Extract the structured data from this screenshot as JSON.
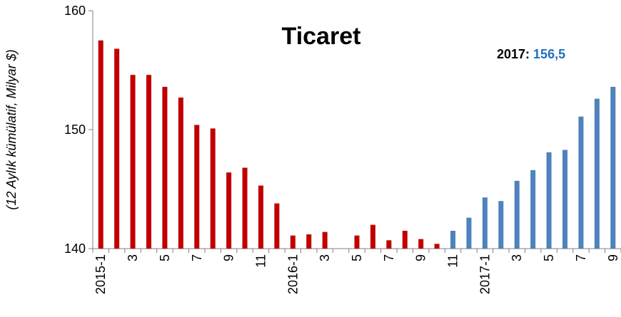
{
  "chart_data": {
    "type": "bar",
    "title": "Ticaret",
    "y_label": "(12 Aylık kümülatif, Milyar $)",
    "annotation_label": "2017:",
    "annotation_value": "156,5",
    "annotation_color": "#1f6fbf",
    "categories": [
      "2015-1",
      null,
      "3",
      null,
      "5",
      null,
      "7",
      null,
      "9",
      null,
      "11",
      null,
      "2016-1",
      null,
      "3",
      null,
      "5",
      null,
      "7",
      null,
      "9",
      null,
      "11",
      null,
      "2017-1",
      null,
      "3",
      null,
      "5",
      null,
      "7",
      null,
      "9"
    ],
    "values": [
      157.5,
      156.8,
      154.6,
      154.6,
      153.6,
      152.7,
      150.4,
      150.1,
      146.4,
      146.8,
      145.3,
      143.8,
      141.1,
      141.2,
      141.4,
      null,
      141.1,
      142.0,
      140.7,
      141.5,
      140.8,
      140.4,
      141.5,
      142.6,
      144.3,
      144.0,
      145.7,
      146.6,
      148.1,
      148.3,
      151.1,
      152.6,
      153.6
    ],
    "colors": [
      "#c00000",
      "#c00000",
      "#c00000",
      "#c00000",
      "#c00000",
      "#c00000",
      "#c00000",
      "#c00000",
      "#c00000",
      "#c00000",
      "#c00000",
      "#c00000",
      "#c00000",
      "#c00000",
      "#c00000",
      "#c00000",
      "#c00000",
      "#c00000",
      "#c00000",
      "#c00000",
      "#c00000",
      "#c00000",
      "#4f81bd",
      "#4f81bd",
      "#4f81bd",
      "#4f81bd",
      "#4f81bd",
      "#4f81bd",
      "#4f81bd",
      "#4f81bd",
      "#4f81bd",
      "#4f81bd",
      "#4f81bd"
    ],
    "ylim": [
      140,
      160
    ],
    "yticks": [
      140,
      150,
      160
    ]
  }
}
